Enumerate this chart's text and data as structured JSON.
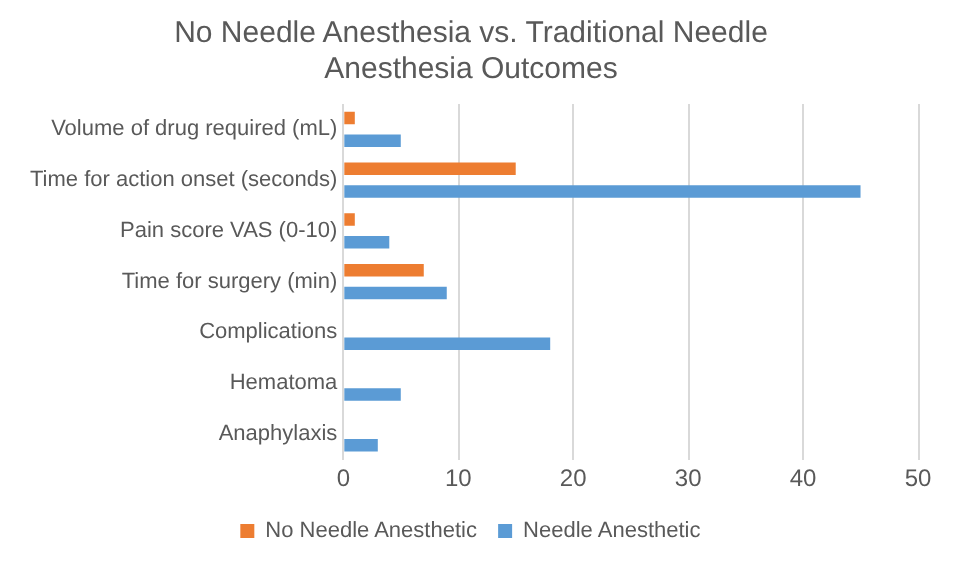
{
  "chart_data": {
    "type": "bar",
    "orientation": "horizontal",
    "title": "No Needle Anesthesia vs. Traditional Needle Anesthesia Outcomes",
    "categories": [
      "Volume of drug required (mL)",
      "Time for action onset (seconds)",
      "Pain score VAS (0-10)",
      "Time for surgery (min)",
      "Complications",
      "Hematoma",
      "Anaphylaxis"
    ],
    "series": [
      {
        "name": "No Needle Anesthetic",
        "color": "#ed7d31",
        "values": [
          1,
          15,
          1,
          7,
          0,
          0,
          0
        ]
      },
      {
        "name": "Needle Anesthetic",
        "color": "#5b9bd5",
        "values": [
          5,
          45,
          4,
          9,
          18,
          5,
          3
        ]
      }
    ],
    "xlim": [
      0,
      50
    ],
    "xticks": [
      0,
      10,
      20,
      30,
      40,
      50
    ],
    "grid": "x",
    "legend": "bottom"
  }
}
